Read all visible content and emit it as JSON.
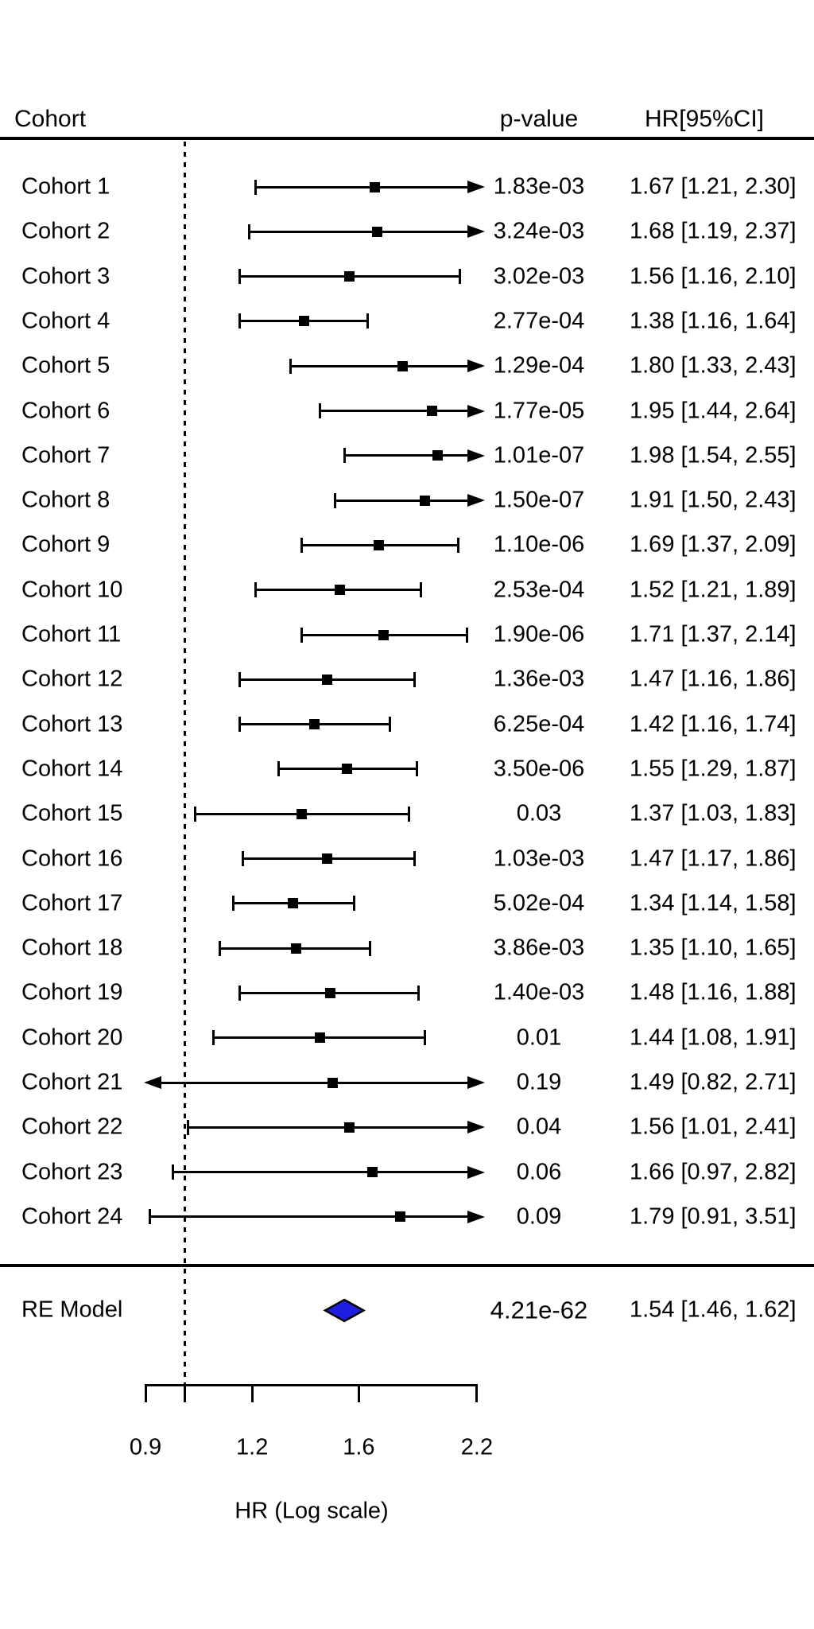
{
  "headers": {
    "cohort": "Cohort",
    "p_value": "p-value",
    "hr_ci": "HR[95%CI]"
  },
  "colors": {
    "foreground": "#000000",
    "background": "#ffffff",
    "diamond_fill": "#1e1ee0",
    "diamond_stroke": "#000000"
  },
  "chart_data": {
    "type": "forest",
    "title": "",
    "xlabel": "HR (Log scale)",
    "x_scale": "log",
    "x_range": [
      0.9,
      2.2
    ],
    "reference_line": 1.0,
    "axis_ticks": [
      {
        "value": 0.9,
        "label": "0.9"
      },
      {
        "value": 1.0,
        "label": ""
      },
      {
        "value": 1.2,
        "label": "1.2"
      },
      {
        "value": 1.6,
        "label": "1.6"
      },
      {
        "value": 2.2,
        "label": "2.2"
      }
    ],
    "rows": [
      {
        "cohort": "Cohort 1",
        "p": "1.83e-03",
        "hr": 1.67,
        "ci_low": 1.21,
        "ci_high": 2.3,
        "hr_text": "1.67 [1.21, 2.30]"
      },
      {
        "cohort": "Cohort 2",
        "p": "3.24e-03",
        "hr": 1.68,
        "ci_low": 1.19,
        "ci_high": 2.37,
        "hr_text": "1.68 [1.19, 2.37]"
      },
      {
        "cohort": "Cohort 3",
        "p": "3.02e-03",
        "hr": 1.56,
        "ci_low": 1.16,
        "ci_high": 2.1,
        "hr_text": "1.56 [1.16, 2.10]"
      },
      {
        "cohort": "Cohort 4",
        "p": "2.77e-04",
        "hr": 1.38,
        "ci_low": 1.16,
        "ci_high": 1.64,
        "hr_text": "1.38 [1.16, 1.64]"
      },
      {
        "cohort": "Cohort 5",
        "p": "1.29e-04",
        "hr": 1.8,
        "ci_low": 1.33,
        "ci_high": 2.43,
        "hr_text": "1.80 [1.33, 2.43]"
      },
      {
        "cohort": "Cohort 6",
        "p": "1.77e-05",
        "hr": 1.95,
        "ci_low": 1.44,
        "ci_high": 2.64,
        "hr_text": "1.95 [1.44, 2.64]"
      },
      {
        "cohort": "Cohort 7",
        "p": "1.01e-07",
        "hr": 1.98,
        "ci_low": 1.54,
        "ci_high": 2.55,
        "hr_text": "1.98 [1.54, 2.55]"
      },
      {
        "cohort": "Cohort 8",
        "p": "1.50e-07",
        "hr": 1.91,
        "ci_low": 1.5,
        "ci_high": 2.43,
        "hr_text": "1.91 [1.50, 2.43]"
      },
      {
        "cohort": "Cohort 9",
        "p": "1.10e-06",
        "hr": 1.69,
        "ci_low": 1.37,
        "ci_high": 2.09,
        "hr_text": "1.69 [1.37, 2.09]"
      },
      {
        "cohort": "Cohort 10",
        "p": "2.53e-04",
        "hr": 1.52,
        "ci_low": 1.21,
        "ci_high": 1.89,
        "hr_text": "1.52 [1.21, 1.89]"
      },
      {
        "cohort": "Cohort 11",
        "p": "1.90e-06",
        "hr": 1.71,
        "ci_low": 1.37,
        "ci_high": 2.14,
        "hr_text": "1.71 [1.37, 2.14]"
      },
      {
        "cohort": "Cohort 12",
        "p": "1.36e-03",
        "hr": 1.47,
        "ci_low": 1.16,
        "ci_high": 1.86,
        "hr_text": "1.47 [1.16, 1.86]"
      },
      {
        "cohort": "Cohort 13",
        "p": "6.25e-04",
        "hr": 1.42,
        "ci_low": 1.16,
        "ci_high": 1.74,
        "hr_text": "1.42 [1.16, 1.74]"
      },
      {
        "cohort": "Cohort 14",
        "p": "3.50e-06",
        "hr": 1.55,
        "ci_low": 1.29,
        "ci_high": 1.87,
        "hr_text": "1.55 [1.29, 1.87]"
      },
      {
        "cohort": "Cohort 15",
        "p": "0.03",
        "hr": 1.37,
        "ci_low": 1.03,
        "ci_high": 1.83,
        "hr_text": "1.37 [1.03, 1.83]"
      },
      {
        "cohort": "Cohort 16",
        "p": "1.03e-03",
        "hr": 1.47,
        "ci_low": 1.17,
        "ci_high": 1.86,
        "hr_text": "1.47 [1.17, 1.86]"
      },
      {
        "cohort": "Cohort 17",
        "p": "5.02e-04",
        "hr": 1.34,
        "ci_low": 1.14,
        "ci_high": 1.58,
        "hr_text": "1.34 [1.14, 1.58]"
      },
      {
        "cohort": "Cohort 18",
        "p": "3.86e-03",
        "hr": 1.35,
        "ci_low": 1.1,
        "ci_high": 1.65,
        "hr_text": "1.35 [1.10, 1.65]"
      },
      {
        "cohort": "Cohort 19",
        "p": "1.40e-03",
        "hr": 1.48,
        "ci_low": 1.16,
        "ci_high": 1.88,
        "hr_text": "1.48 [1.16, 1.88]"
      },
      {
        "cohort": "Cohort 20",
        "p": "0.01",
        "hr": 1.44,
        "ci_low": 1.08,
        "ci_high": 1.91,
        "hr_text": "1.44 [1.08, 1.91]"
      },
      {
        "cohort": "Cohort 21",
        "p": "0.19",
        "hr": 1.49,
        "ci_low": 0.82,
        "ci_high": 2.71,
        "hr_text": "1.49 [0.82, 2.71]"
      },
      {
        "cohort": "Cohort 22",
        "p": "0.04",
        "hr": 1.56,
        "ci_low": 1.01,
        "ci_high": 2.41,
        "hr_text": "1.56 [1.01, 2.41]"
      },
      {
        "cohort": "Cohort 23",
        "p": "0.06",
        "hr": 1.66,
        "ci_low": 0.97,
        "ci_high": 2.82,
        "hr_text": "1.66 [0.97, 2.82]"
      },
      {
        "cohort": "Cohort 24",
        "p": "0.09",
        "hr": 1.79,
        "ci_low": 0.91,
        "ci_high": 3.51,
        "hr_text": "1.79 [0.91, 3.51]"
      }
    ],
    "summary": {
      "label": "RE Model",
      "p": "4.21e-62",
      "hr": 1.54,
      "ci_low": 1.46,
      "ci_high": 1.62,
      "hr_text": "1.54 [1.46, 1.62]"
    }
  }
}
